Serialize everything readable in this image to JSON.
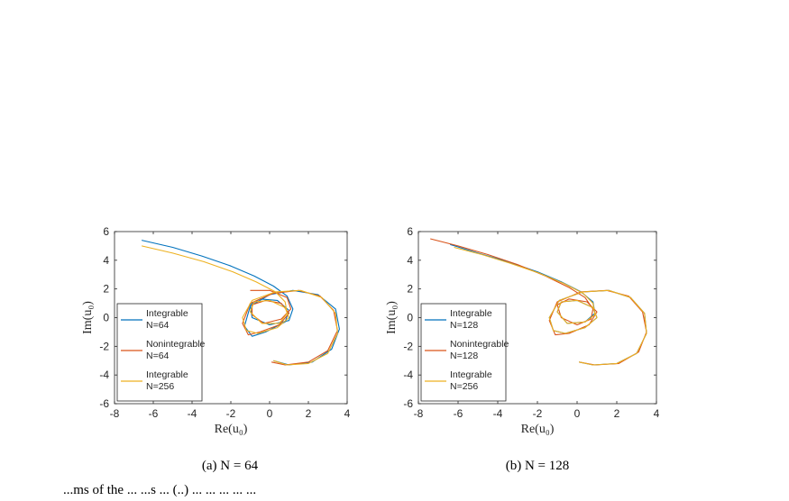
{
  "top_text": "...ms of the ...  ...s ... (..) ...  ...  ... ... ...",
  "colors": {
    "blue": "#0072BD",
    "red": "#D95319",
    "yellow": "#EDB120",
    "axis": "#262626"
  },
  "chart_data": [
    {
      "type": "line",
      "caption": "(a)  N = 64",
      "xlabel": "Re(u₀)",
      "ylabel": "Im(u₀)",
      "xlim": [
        -8,
        4
      ],
      "ylim": [
        -6,
        6
      ],
      "xticks": [
        "-8",
        "-6",
        "-4",
        "-2",
        "0",
        "2",
        "4"
      ],
      "yticks": [
        "-6",
        "-4",
        "-2",
        "0",
        "2",
        "4",
        "6"
      ],
      "legend_position": "bottom-left",
      "series": [
        {
          "name": "Integrable\nN=64",
          "color": "#0072BD",
          "x": [
            -6.6,
            -5.0,
            -3.5,
            -2.0,
            -0.8,
            0.2,
            0.9,
            1.2,
            1.0,
            0.0,
            -0.9,
            -1.0,
            -0.5,
            0.4,
            1.0,
            0.8,
            -0.2,
            -0.9,
            -1.3,
            -1.0,
            0.0,
            1.2,
            2.5,
            3.4,
            3.6,
            3.2,
            2.2,
            1.0,
            0.2
          ],
          "y": [
            5.4,
            4.9,
            4.3,
            3.6,
            2.9,
            2.2,
            1.5,
            0.6,
            -0.2,
            -0.5,
            0.0,
            0.9,
            1.3,
            1.2,
            0.5,
            -0.3,
            -1.0,
            -1.3,
            -0.6,
            0.8,
            1.6,
            1.9,
            1.6,
            0.6,
            -0.8,
            -2.2,
            -3.1,
            -3.3,
            -3.0
          ]
        },
        {
          "name": "Nonintegrable\nN=64",
          "color": "#D95319",
          "x": [
            -1.0,
            0.0,
            0.9,
            1.1,
            0.6,
            -0.3,
            -0.9,
            -0.9,
            -0.2,
            0.6,
            1.0,
            0.5,
            -0.5,
            -1.1,
            -1.4,
            -1.0,
            0.2,
            1.5,
            2.6,
            3.3,
            3.5,
            3.0,
            2.0,
            0.8,
            0.1
          ],
          "y": [
            1.9,
            1.9,
            1.4,
            0.6,
            -0.1,
            -0.4,
            0.2,
            0.9,
            1.2,
            1.0,
            0.3,
            -0.5,
            -1.0,
            -1.2,
            -0.4,
            1.0,
            1.7,
            1.9,
            1.5,
            0.5,
            -0.9,
            -2.3,
            -3.1,
            -3.3,
            -3.1
          ]
        },
        {
          "name": "Integrable\nN=256",
          "color": "#EDB120",
          "x": [
            -6.6,
            -5.0,
            -3.4,
            -1.9,
            -0.7,
            0.3,
            0.8,
            0.9,
            0.5,
            -0.4,
            -1.0,
            -0.8,
            0.0,
            0.8,
            1.0,
            0.4,
            -0.6,
            -1.2,
            -1.4,
            -0.9,
            0.3,
            1.6,
            2.7,
            3.4,
            3.5,
            3.0,
            2.0,
            0.9,
            0.2
          ],
          "y": [
            5.0,
            4.5,
            3.9,
            3.2,
            2.5,
            1.8,
            1.1,
            0.3,
            -0.4,
            -0.4,
            0.4,
            1.1,
            1.2,
            0.7,
            0.0,
            -0.7,
            -1.1,
            -0.9,
            0.0,
            1.2,
            1.8,
            1.9,
            1.4,
            0.3,
            -1.1,
            -2.5,
            -3.2,
            -3.3,
            -3.0
          ]
        }
      ]
    },
    {
      "type": "line",
      "caption": "(b)  N = 128",
      "xlabel": "Re(u₀)",
      "ylabel": "Im(u₀)",
      "xlim": [
        -8,
        4
      ],
      "ylim": [
        -6,
        6
      ],
      "xticks": [
        "-8",
        "-6",
        "-4",
        "-2",
        "0",
        "2",
        "4"
      ],
      "yticks": [
        "-6",
        "-4",
        "-2",
        "0",
        "2",
        "4",
        "6"
      ],
      "legend_position": "bottom-left",
      "series": [
        {
          "name": "Integrable\nN=128",
          "color": "#0072BD",
          "x": [
            -6.4,
            -5.0,
            -3.5,
            -2.0,
            -0.8,
            0.2,
            0.8,
            0.9,
            0.4,
            -0.5,
            -1.0,
            -0.8,
            0.0,
            0.8,
            1.0,
            0.4,
            -0.6,
            -1.2,
            -1.4,
            -0.9,
            0.3,
            1.6,
            2.7,
            3.4,
            3.5,
            3.0,
            2.0,
            0.8,
            0.1
          ],
          "y": [
            5.1,
            4.5,
            3.9,
            3.2,
            2.5,
            1.8,
            1.1,
            0.3,
            -0.3,
            -0.4,
            0.4,
            1.1,
            1.2,
            0.7,
            0.0,
            -0.7,
            -1.1,
            -0.9,
            0.0,
            1.2,
            1.8,
            1.9,
            1.4,
            0.3,
            -1.1,
            -2.5,
            -3.2,
            -3.3,
            -3.1
          ]
        },
        {
          "name": "Nonintegrable\nN=128",
          "color": "#D95319",
          "x": [
            -7.4,
            -6.0,
            -4.5,
            -3.0,
            -1.6,
            -0.4,
            0.4,
            0.8,
            0.7,
            0.0,
            -0.8,
            -1.0,
            -0.4,
            0.5,
            1.0,
            0.6,
            -0.4,
            -1.1,
            -1.4,
            -1.0,
            0.2,
            1.5,
            2.6,
            3.3,
            3.5,
            3.1,
            2.1,
            0.9,
            0.1
          ],
          "y": [
            5.5,
            5.0,
            4.4,
            3.7,
            2.9,
            2.1,
            1.4,
            0.6,
            -0.1,
            -0.5,
            0.0,
            0.9,
            1.3,
            1.1,
            0.4,
            -0.5,
            -1.1,
            -1.2,
            -0.2,
            1.1,
            1.8,
            1.9,
            1.5,
            0.4,
            -1.0,
            -2.4,
            -3.2,
            -3.3,
            -3.1
          ]
        },
        {
          "name": "Integrable\nN=256",
          "color": "#EDB120",
          "x": [
            -6.2,
            -4.8,
            -3.4,
            -1.9,
            -0.7,
            0.3,
            0.8,
            0.9,
            0.4,
            -0.5,
            -1.0,
            -0.8,
            0.0,
            0.8,
            1.0,
            0.4,
            -0.6,
            -1.2,
            -1.4,
            -0.9,
            0.3,
            1.6,
            2.7,
            3.4,
            3.5,
            3.0,
            2.0,
            0.8,
            0.1
          ],
          "y": [
            4.9,
            4.4,
            3.8,
            3.1,
            2.4,
            1.7,
            1.0,
            0.2,
            -0.3,
            -0.4,
            0.4,
            1.1,
            1.2,
            0.7,
            0.0,
            -0.7,
            -1.1,
            -0.9,
            0.0,
            1.2,
            1.8,
            1.9,
            1.4,
            0.3,
            -1.1,
            -2.5,
            -3.2,
            -3.3,
            -3.1
          ]
        }
      ]
    }
  ]
}
